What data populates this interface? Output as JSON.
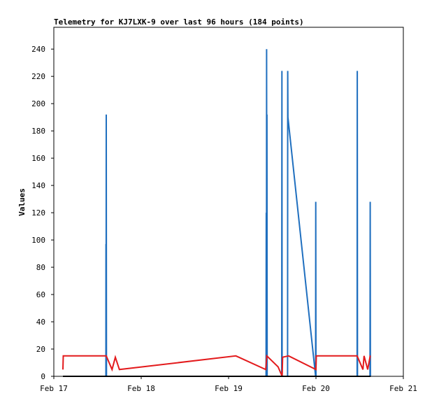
{
  "chart_data": {
    "type": "line",
    "title": "Telemetry for KJ7LXK-9 over last 96 hours (184 points)",
    "xlabel": "",
    "ylabel": "Values",
    "x_ticks": [
      "Feb 17",
      "Feb 18",
      "Feb 19",
      "Feb 20",
      "Feb 21"
    ],
    "y_ticks": [
      0,
      20,
      40,
      60,
      80,
      100,
      120,
      140,
      160,
      180,
      200,
      220,
      240
    ],
    "xlim": [
      0,
      96
    ],
    "ylim": [
      0,
      256
    ],
    "grid": false,
    "colors": {
      "frame": "#000000",
      "series_blue": "#1f6fbf",
      "series_red": "#e31a1c",
      "series_black": "#000000"
    },
    "series": [
      {
        "color": "#1f6fbf",
        "points": [
          [
            2.5,
            0
          ],
          [
            14.3,
            0
          ],
          [
            14.33,
            97
          ],
          [
            14.36,
            0
          ],
          [
            14.4,
            192
          ],
          [
            14.45,
            0
          ],
          [
            58.3,
            0
          ],
          [
            58.35,
            120
          ],
          [
            58.4,
            0
          ],
          [
            58.45,
            240
          ],
          [
            58.5,
            0
          ],
          [
            58.55,
            192
          ],
          [
            58.6,
            0
          ],
          [
            62.6,
            0
          ],
          [
            62.65,
            224
          ],
          [
            62.7,
            0
          ],
          [
            64.2,
            0
          ],
          [
            64.25,
            224
          ],
          [
            64.3,
            190
          ],
          [
            71.9,
            0
          ],
          [
            71.95,
            128
          ],
          [
            72.0,
            0
          ],
          [
            83.3,
            0
          ],
          [
            83.35,
            224
          ],
          [
            83.4,
            0
          ],
          [
            86.85,
            0
          ],
          [
            86.9,
            128
          ],
          [
            86.95,
            0
          ]
        ]
      },
      {
        "color": "#e31a1c",
        "points": [
          [
            2.5,
            5
          ],
          [
            2.6,
            15
          ],
          [
            14.4,
            15
          ],
          [
            16.0,
            5
          ],
          [
            16.9,
            14
          ],
          [
            18.0,
            5
          ],
          [
            50.0,
            15
          ],
          [
            50.8,
            14
          ],
          [
            58.2,
            5
          ],
          [
            58.5,
            15
          ],
          [
            61.6,
            7
          ],
          [
            62.7,
            0
          ],
          [
            62.85,
            14
          ],
          [
            64.5,
            15
          ],
          [
            72.0,
            5
          ],
          [
            72.1,
            15
          ],
          [
            83.3,
            15
          ],
          [
            84.9,
            5
          ],
          [
            85.2,
            15
          ],
          [
            86.2,
            5
          ],
          [
            86.9,
            15
          ],
          [
            87.0,
            15
          ]
        ]
      },
      {
        "color": "#000000",
        "points": [
          [
            2.5,
            0
          ],
          [
            87.0,
            0
          ]
        ]
      }
    ]
  }
}
